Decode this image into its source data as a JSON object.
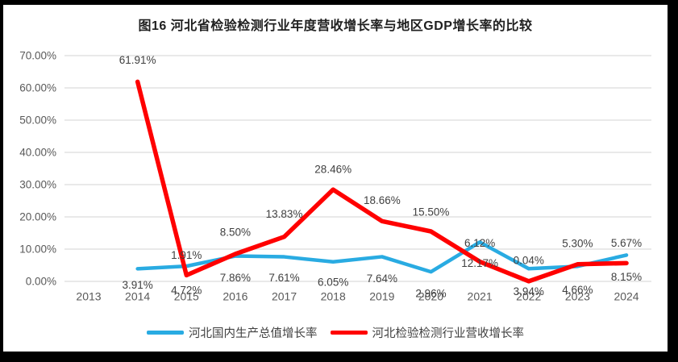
{
  "figure": {
    "background_color": "#ffffff",
    "frame_color": "#000000"
  },
  "chart_data": {
    "type": "line",
    "title": "图16 河北省检验检测行业年度营收增长率与地区GDP增长率的比较",
    "categories": [
      "2013",
      "2014",
      "2015",
      "2016",
      "2017",
      "2018",
      "2019",
      "2020",
      "2021",
      "2022",
      "2023",
      "2024"
    ],
    "series": [
      {
        "name": "河北国内生产总值增长率",
        "color": "#29ABE2",
        "values": [
          null,
          3.91,
          4.72,
          7.86,
          7.61,
          6.05,
          7.64,
          2.96,
          12.17,
          3.94,
          4.66,
          8.15
        ],
        "point_labels": [
          "3.91%",
          "4.72%",
          "7.86%",
          "7.61%",
          "6.05%",
          "7.64%",
          "2.96%",
          "12.17%",
          "3.94%",
          "4.66%",
          "8.15%"
        ],
        "label_position": "below"
      },
      {
        "name": "河北检验检测行业营收增长率",
        "color": "#FF0000",
        "values": [
          null,
          61.91,
          1.91,
          8.5,
          13.83,
          28.46,
          18.66,
          15.5,
          6.12,
          0.04,
          5.3,
          5.67
        ],
        "point_labels": [
          "61.91%",
          "1.91%",
          "8.50%",
          "13.83%",
          "28.46%",
          "18.66%",
          "15.50%",
          "6.12%",
          "0.04%",
          "5.30%",
          "5.67%"
        ],
        "label_position": "above"
      }
    ],
    "y_axis": {
      "min": 0,
      "max": 70,
      "step": 10,
      "tick_labels_top_to_bottom": [
        "70.00%",
        "60.00%",
        "50.00%",
        "40.00%",
        "30.00%",
        "20.00%",
        "10.00%",
        "0.00%"
      ]
    },
    "grid": true,
    "legend_position": "bottom",
    "data_labels_shown": true,
    "text_colors": {
      "axis": "#595959",
      "data_label": "#404040",
      "gridline": "#DCDCDC"
    }
  }
}
